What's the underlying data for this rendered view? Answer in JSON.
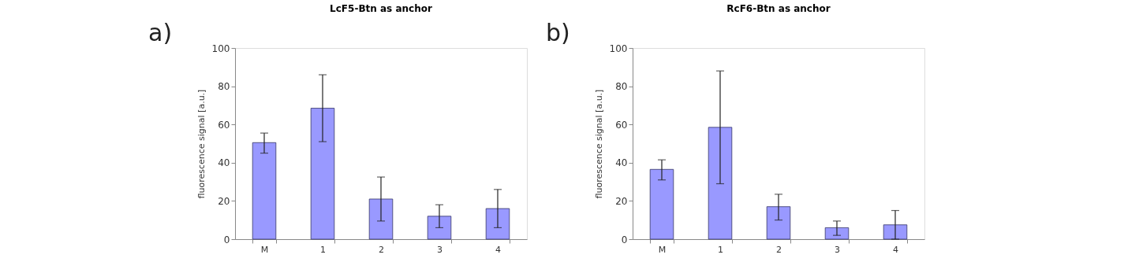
{
  "chart_data": [
    {
      "type": "bar",
      "title": "LcF5-Btn as anchor",
      "ylabel": "fluorescence signal [a.u.]",
      "categories": [
        "M",
        "1",
        "2",
        "3",
        "4"
      ],
      "values": [
        50.5,
        68.5,
        21,
        12,
        16
      ],
      "errors": [
        [
          45,
          55.5
        ],
        [
          51,
          86
        ],
        [
          9.5,
          32.5
        ],
        [
          6,
          18
        ],
        [
          6,
          26
        ]
      ],
      "color": "#9999ff",
      "ylim": [
        0,
        100
      ],
      "yticks": [
        0,
        20,
        40,
        60,
        80,
        100
      ],
      "grid": false,
      "annotations": [
        "a)"
      ]
    },
    {
      "type": "bar",
      "title": "RcF6-Btn as anchor",
      "ylabel": "fluorescence signal [a.u.]",
      "categories": [
        "M",
        "1",
        "2",
        "3",
        "4"
      ],
      "values": [
        36.5,
        58.5,
        17,
        6,
        7.5
      ],
      "errors": [
        [
          31,
          41.5
        ],
        [
          29,
          88
        ],
        [
          10,
          23.5
        ],
        [
          2,
          9.5
        ],
        [
          0,
          15
        ]
      ],
      "color": "#9999ff",
      "ylim": [
        0,
        100
      ],
      "yticks": [
        0,
        20,
        40,
        60,
        80,
        100
      ],
      "grid": false,
      "annotations": [
        "b)"
      ]
    }
  ]
}
